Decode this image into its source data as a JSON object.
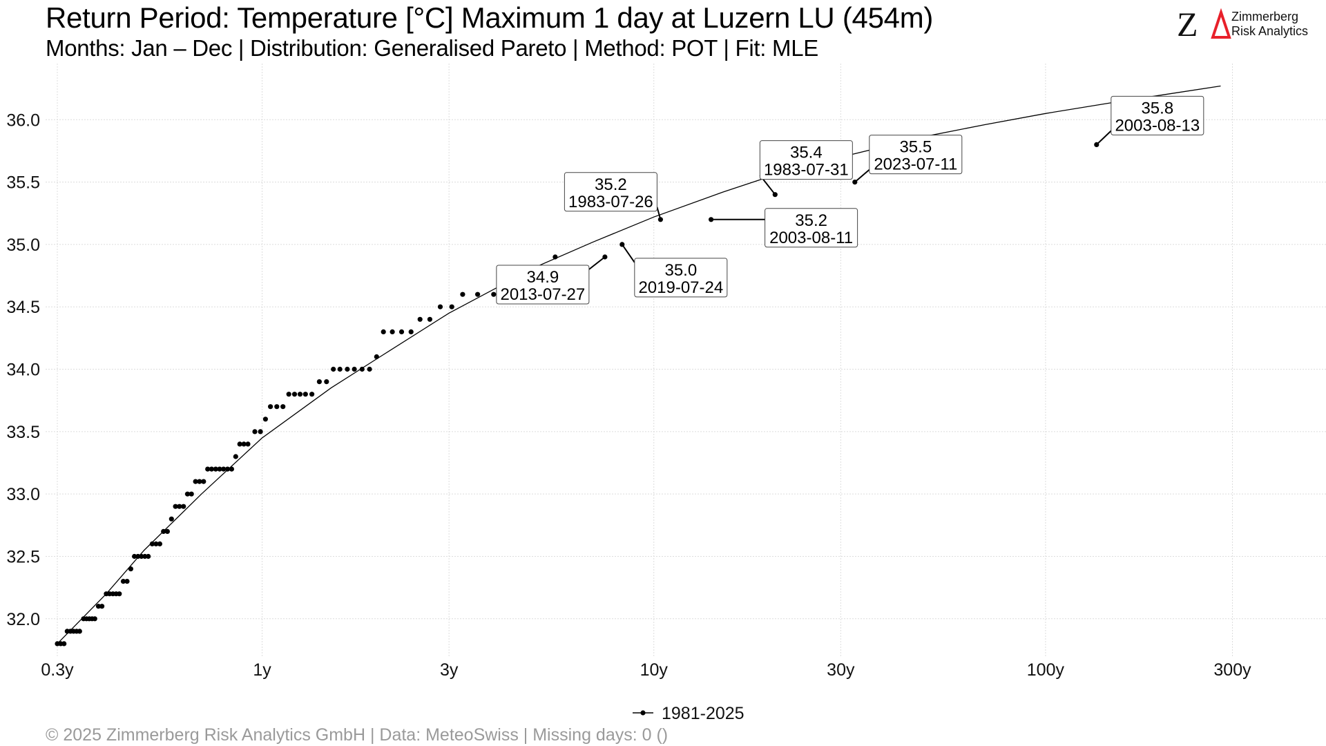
{
  "header": {
    "title": "Return Period: Temperature [°C] Maximum 1 day at Luzern  LU (454m)",
    "subtitle": "Months: Jan – Dec | Distribution: Generalised Pareto | Method: POT | Fit: MLE"
  },
  "logo": {
    "mark": "ZΔ",
    "line1": "Zimmerberg",
    "line2": "Risk Analytics"
  },
  "footer": {
    "text": "©  2025 Zimmerberg Risk Analytics GmbH | Data: MeteoSwiss | Missing days: 0 ()"
  },
  "colors": {
    "points": "#000000",
    "fit_line": "#000000",
    "grid": "#dcdcdc",
    "logo_delta": "#e8202a"
  },
  "chart_data": {
    "type": "scatter",
    "x_scale": "log",
    "x_unit": "years (return period)",
    "xlim": [
      0.28,
      520
    ],
    "ylim": [
      31.7,
      36.45
    ],
    "y_ticks": [
      32.0,
      32.5,
      33.0,
      33.5,
      34.0,
      34.5,
      35.0,
      35.5,
      36.0
    ],
    "y_tick_labels": [
      "32.0",
      "32.5",
      "33.0",
      "33.5",
      "34.0",
      "34.5",
      "35.0",
      "35.5",
      "36.0"
    ],
    "x_ticks": [
      0.3,
      1,
      3,
      10,
      30,
      100,
      300
    ],
    "x_tick_labels": [
      "0.3y",
      "1y",
      "3y",
      "10y",
      "30y",
      "100y",
      "300y"
    ],
    "grid": true,
    "legend": {
      "position": "bottom-center",
      "entries": [
        "1981-2025"
      ]
    },
    "fit_curve": {
      "name": "Generalised Pareto fit",
      "x": [
        0.3,
        0.4,
        0.5,
        0.7,
        1,
        1.5,
        2,
        3,
        5,
        7,
        10,
        15,
        20,
        30,
        50,
        70,
        100,
        150,
        200,
        280
      ],
      "y": [
        31.8,
        32.2,
        32.55,
        33.0,
        33.45,
        33.85,
        34.1,
        34.45,
        34.82,
        35.02,
        35.22,
        35.42,
        35.55,
        35.7,
        35.87,
        35.96,
        36.05,
        36.14,
        36.2,
        36.27
      ]
    },
    "series": [
      {
        "name": "1981-2025",
        "points": [
          [
            0.3,
            31.8
          ],
          [
            0.306,
            31.8
          ],
          [
            0.312,
            31.8
          ],
          [
            0.318,
            31.9
          ],
          [
            0.324,
            31.9
          ],
          [
            0.33,
            31.9
          ],
          [
            0.336,
            31.9
          ],
          [
            0.342,
            31.9
          ],
          [
            0.35,
            32.0
          ],
          [
            0.356,
            32.0
          ],
          [
            0.362,
            32.0
          ],
          [
            0.368,
            32.0
          ],
          [
            0.374,
            32.0
          ],
          [
            0.382,
            32.1
          ],
          [
            0.39,
            32.1
          ],
          [
            0.4,
            32.2
          ],
          [
            0.408,
            32.2
          ],
          [
            0.416,
            32.2
          ],
          [
            0.424,
            32.2
          ],
          [
            0.432,
            32.2
          ],
          [
            0.442,
            32.3
          ],
          [
            0.452,
            32.3
          ],
          [
            0.462,
            32.4
          ],
          [
            0.472,
            32.5
          ],
          [
            0.482,
            32.5
          ],
          [
            0.492,
            32.5
          ],
          [
            0.502,
            32.5
          ],
          [
            0.512,
            32.5
          ],
          [
            0.524,
            32.6
          ],
          [
            0.536,
            32.6
          ],
          [
            0.548,
            32.6
          ],
          [
            0.56,
            32.7
          ],
          [
            0.573,
            32.7
          ],
          [
            0.587,
            32.8
          ],
          [
            0.601,
            32.9
          ],
          [
            0.615,
            32.9
          ],
          [
            0.63,
            32.9
          ],
          [
            0.645,
            33.0
          ],
          [
            0.66,
            33.0
          ],
          [
            0.676,
            33.1
          ],
          [
            0.692,
            33.1
          ],
          [
            0.709,
            33.1
          ],
          [
            0.726,
            33.2
          ],
          [
            0.743,
            33.2
          ],
          [
            0.761,
            33.2
          ],
          [
            0.779,
            33.2
          ],
          [
            0.797,
            33.2
          ],
          [
            0.816,
            33.2
          ],
          [
            0.836,
            33.2
          ],
          [
            0.856,
            33.3
          ],
          [
            0.877,
            33.4
          ],
          [
            0.898,
            33.4
          ],
          [
            0.92,
            33.4
          ],
          [
            0.958,
            33.5
          ],
          [
            0.99,
            33.5
          ],
          [
            1.02,
            33.6
          ],
          [
            1.05,
            33.7
          ],
          [
            1.09,
            33.7
          ],
          [
            1.13,
            33.7
          ],
          [
            1.17,
            33.8
          ],
          [
            1.21,
            33.8
          ],
          [
            1.25,
            33.8
          ],
          [
            1.29,
            33.8
          ],
          [
            1.34,
            33.8
          ],
          [
            1.4,
            33.9
          ],
          [
            1.46,
            33.9
          ],
          [
            1.52,
            34.0
          ],
          [
            1.58,
            34.0
          ],
          [
            1.65,
            34.0
          ],
          [
            1.72,
            34.0
          ],
          [
            1.8,
            34.0
          ],
          [
            1.88,
            34.0
          ],
          [
            1.96,
            34.1
          ],
          [
            2.04,
            34.3
          ],
          [
            2.15,
            34.3
          ],
          [
            2.27,
            34.3
          ],
          [
            2.4,
            34.3
          ],
          [
            2.53,
            34.4
          ],
          [
            2.68,
            34.4
          ],
          [
            2.85,
            34.5
          ],
          [
            3.05,
            34.5
          ],
          [
            3.25,
            34.6
          ],
          [
            3.55,
            34.6
          ],
          [
            3.9,
            34.6
          ],
          [
            4.3,
            34.6
          ],
          [
            5.6,
            34.9
          ],
          [
            7.5,
            34.9
          ],
          [
            8.3,
            35.0
          ],
          [
            10.4,
            35.2
          ],
          [
            14.0,
            35.2
          ],
          [
            20.4,
            35.4
          ],
          [
            32.6,
            35.5
          ],
          [
            135.0,
            35.8
          ]
        ]
      }
    ],
    "annotations": [
      {
        "value": "35.2",
        "date": "1983-07-26",
        "x": 10.4,
        "y": 35.2
      },
      {
        "value": "35.2",
        "date": "2003-08-11",
        "x": 14.0,
        "y": 35.2
      },
      {
        "value": "35.0",
        "date": "2019-07-24",
        "x": 8.3,
        "y": 35.0
      },
      {
        "value": "34.9",
        "date": "2013-07-27",
        "x": 7.5,
        "y": 34.9
      },
      {
        "value": "35.4",
        "date": "1983-07-31",
        "x": 20.4,
        "y": 35.4
      },
      {
        "value": "35.5",
        "date": "2023-07-11",
        "x": 32.6,
        "y": 35.5
      },
      {
        "value": "35.8",
        "date": "2003-08-13",
        "x": 135.0,
        "y": 35.8
      }
    ]
  }
}
